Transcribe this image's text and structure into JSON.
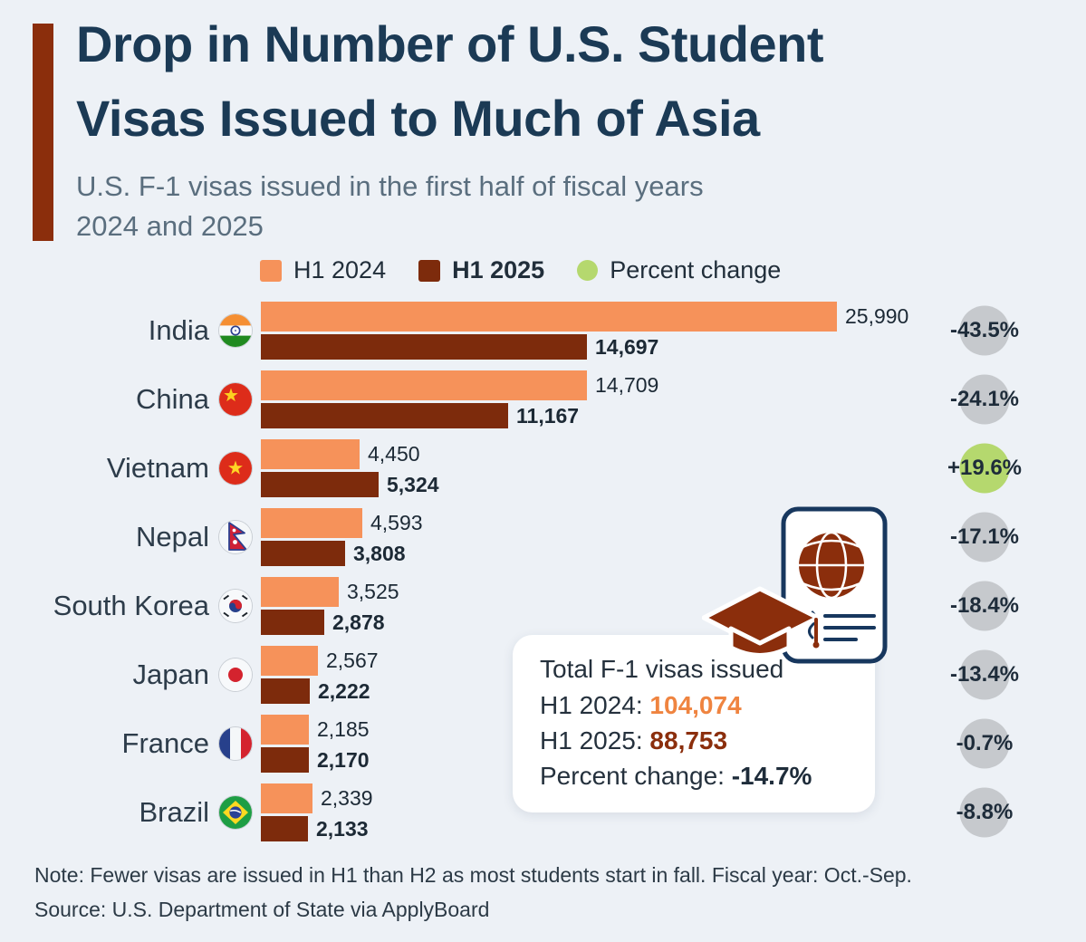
{
  "colors": {
    "background": "#edf1f6",
    "accent_bar": "#8b2e0c",
    "title": "#1b3a55",
    "subtitle": "#5a6e7e",
    "h1_2024": "#f6925a",
    "h1_2025": "#7d2b0c",
    "positive_circle": "#b5d86e",
    "negative_circle": "#c6c9cd",
    "summary_2024_value": "#ef8440",
    "summary_2025_value": "#8b2e0c"
  },
  "header": {
    "title_line1": "Drop in Number of U.S. Student",
    "title_line2": "Visas Issued to Much of Asia",
    "subtitle_line1": "U.S. F-1 visas issued in the first half of fiscal years",
    "subtitle_line2": "2024 and 2025"
  },
  "legend": [
    {
      "label": "H1 2024",
      "swatch": "square",
      "color": "#f6925a",
      "bold": false
    },
    {
      "label": "H1 2025",
      "swatch": "square",
      "color": "#7d2b0c",
      "bold": true
    },
    {
      "label": "Percent change",
      "swatch": "circle",
      "color": "#b5d86e",
      "bold": false
    }
  ],
  "chart_data": {
    "type": "bar",
    "orientation": "horizontal",
    "title": "Drop in Number of U.S. Student Visas Issued to Much of Asia",
    "subtitle": "U.S. F-1 visas issued in the first half of fiscal years 2024 and 2025",
    "categories": [
      "India",
      "China",
      "Vietnam",
      "Nepal",
      "South Korea",
      "Japan",
      "France",
      "Brazil"
    ],
    "flags": [
      "india",
      "china",
      "vietnam",
      "nepal",
      "south-korea",
      "japan",
      "france",
      "brazil"
    ],
    "series": [
      {
        "name": "H1 2024",
        "color": "#f6925a",
        "values": [
          25990,
          14709,
          4450,
          4593,
          3525,
          2567,
          2185,
          2339
        ],
        "value_labels": [
          "25,990",
          "14,709",
          "4,450",
          "4,593",
          "3,525",
          "2,567",
          "2,185",
          "2,339"
        ]
      },
      {
        "name": "H1 2025",
        "color": "#7d2b0c",
        "values": [
          14697,
          11167,
          5324,
          3808,
          2878,
          2222,
          2170,
          2133
        ],
        "value_labels": [
          "14,697",
          "11,167",
          "5,324",
          "3,808",
          "2,878",
          "2,222",
          "2,170",
          "2,133"
        ]
      }
    ],
    "percent_change": {
      "name": "Percent change",
      "values": [
        -43.5,
        -24.1,
        19.6,
        -17.1,
        -18.4,
        -13.4,
        -0.7,
        -8.8
      ],
      "labels": [
        "-43.5%",
        "-24.1%",
        "+19.6%",
        "-17.1%",
        "-18.4%",
        "-13.4%",
        "-0.7%",
        "-8.8%"
      ],
      "positive_color": "#b5d86e",
      "negative_color": "#c6c9cd"
    },
    "xmax": 25990,
    "legend_position": "top",
    "grid": false
  },
  "summary": {
    "title": "Total F-1 visas issued",
    "rows": [
      {
        "label": "H1 2024:",
        "value": "104,074",
        "value_color": "#ef8440"
      },
      {
        "label": "H1 2025:",
        "value": "88,753",
        "value_color": "#8b2e0c"
      },
      {
        "label": "Percent change:",
        "value": "-14.7%",
        "value_color": "#1e2c3a"
      }
    ]
  },
  "illustration": {
    "icons": [
      "passport-icon",
      "globe-icon",
      "document-lines-icon",
      "graduation-cap-icon"
    ]
  },
  "footer": {
    "note": "Note: Fewer visas are issued in H1 than H2 as most students start in fall. Fiscal year: Oct.-Sep.",
    "source": "Source: U.S. Department of State via ApplyBoard"
  }
}
